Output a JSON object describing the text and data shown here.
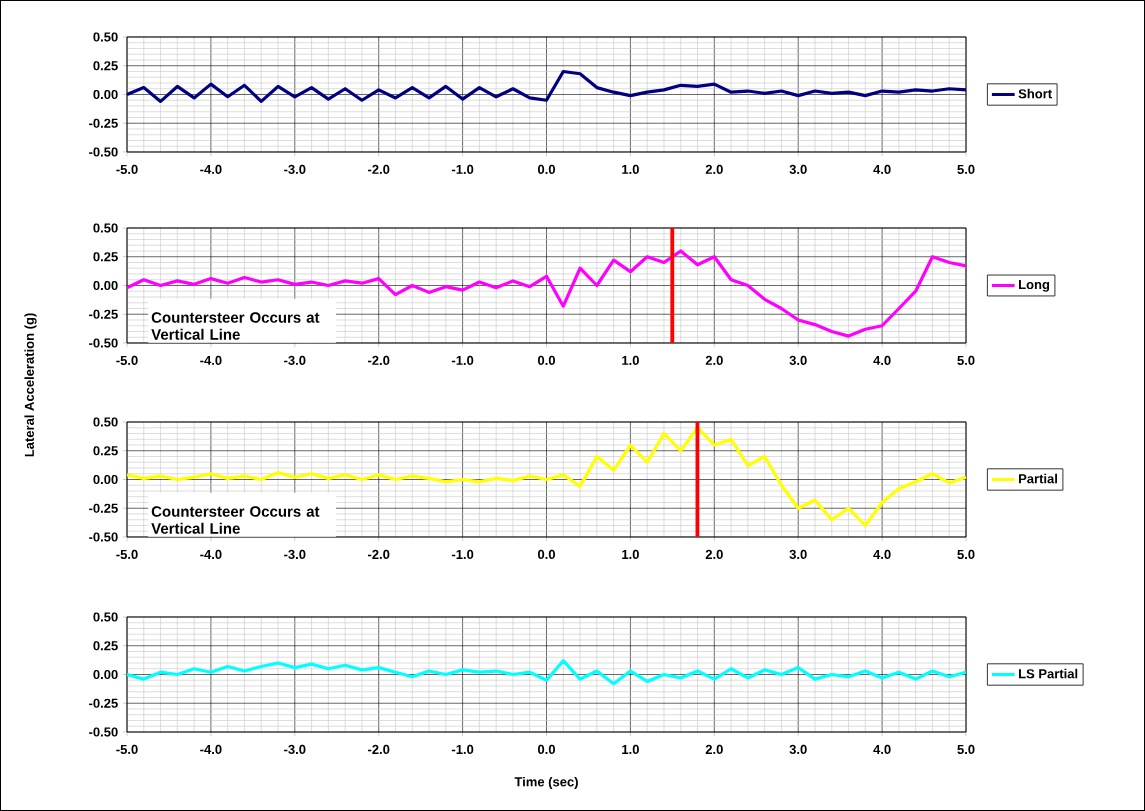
{
  "chart_data": [
    {
      "type": "line",
      "x": [
        -5.0,
        -4.8,
        -4.6,
        -4.4,
        -4.2,
        -4.0,
        -3.8,
        -3.6,
        -3.4,
        -3.2,
        -3.0,
        -2.8,
        -2.6,
        -2.4,
        -2.2,
        -2.0,
        -1.8,
        -1.6,
        -1.4,
        -1.2,
        -1.0,
        -0.8,
        -0.6,
        -0.4,
        -0.2,
        0.0,
        0.2,
        0.4,
        0.6,
        0.8,
        1.0,
        1.2,
        1.4,
        1.6,
        1.8,
        2.0,
        2.2,
        2.4,
        2.6,
        2.8,
        3.0,
        3.2,
        3.4,
        3.6,
        3.8,
        4.0,
        4.2,
        4.4,
        4.6,
        4.8,
        5.0
      ],
      "series": [
        {
          "name": "Short",
          "color": "#000080",
          "values": [
            0.0,
            0.06,
            -0.06,
            0.07,
            -0.03,
            0.09,
            -0.02,
            0.08,
            -0.06,
            0.07,
            -0.02,
            0.06,
            -0.04,
            0.05,
            -0.05,
            0.04,
            -0.03,
            0.06,
            -0.03,
            0.07,
            -0.04,
            0.06,
            -0.02,
            0.05,
            -0.03,
            -0.05,
            0.2,
            0.18,
            0.06,
            0.02,
            -0.01,
            0.02,
            0.04,
            0.08,
            0.07,
            0.09,
            0.02,
            0.03,
            0.01,
            0.03,
            -0.01,
            0.03,
            0.01,
            0.02,
            -0.01,
            0.03,
            0.02,
            0.04,
            0.03,
            0.05,
            0.04
          ]
        }
      ],
      "xlim": [
        -5,
        5
      ],
      "ylim": [
        -0.5,
        0.5
      ],
      "xticks": [
        {
          "value": -5,
          "label": "-5.0"
        },
        {
          "value": -4,
          "label": "-4.0"
        },
        {
          "value": -3,
          "label": "-3.0"
        },
        {
          "value": -2,
          "label": "-2.0"
        },
        {
          "value": -1,
          "label": "-1.0"
        },
        {
          "value": 0,
          "label": "0.0"
        },
        {
          "value": 1,
          "label": "1.0"
        },
        {
          "value": 2,
          "label": "2.0"
        },
        {
          "value": 3,
          "label": "3.0"
        },
        {
          "value": 4,
          "label": "4.0"
        },
        {
          "value": 5,
          "label": "5.0"
        }
      ],
      "yticks": [
        {
          "value": -0.5,
          "label": "-0.50"
        },
        {
          "value": -0.25,
          "label": "-0.25"
        },
        {
          "value": 0,
          "label": "0.00"
        },
        {
          "value": 0.25,
          "label": "0.25"
        },
        {
          "value": 0.5,
          "label": "0.50"
        }
      ],
      "grid": true,
      "legend": "right"
    },
    {
      "type": "line",
      "ylabel": "Lateral Acceleration (g)",
      "x": [
        -5.0,
        -4.8,
        -4.6,
        -4.4,
        -4.2,
        -4.0,
        -3.8,
        -3.6,
        -3.4,
        -3.2,
        -3.0,
        -2.8,
        -2.6,
        -2.4,
        -2.2,
        -2.0,
        -1.8,
        -1.6,
        -1.4,
        -1.2,
        -1.0,
        -0.8,
        -0.6,
        -0.4,
        -0.2,
        0.0,
        0.2,
        0.4,
        0.6,
        0.8,
        1.0,
        1.2,
        1.4,
        1.6,
        1.8,
        2.0,
        2.2,
        2.4,
        2.6,
        2.8,
        3.0,
        3.2,
        3.4,
        3.6,
        3.8,
        4.0,
        4.2,
        4.4,
        4.6,
        4.8,
        5.0
      ],
      "series": [
        {
          "name": "Long",
          "color": "#ff00ff",
          "values": [
            -0.02,
            0.05,
            0.0,
            0.04,
            0.01,
            0.06,
            0.02,
            0.07,
            0.03,
            0.05,
            0.01,
            0.03,
            0.0,
            0.04,
            0.02,
            0.06,
            -0.08,
            0.0,
            -0.06,
            -0.01,
            -0.04,
            0.03,
            -0.02,
            0.04,
            -0.01,
            0.08,
            -0.18,
            0.15,
            0.0,
            0.22,
            0.12,
            0.25,
            0.2,
            0.3,
            0.18,
            0.25,
            0.05,
            0.0,
            -0.12,
            -0.2,
            -0.3,
            -0.34,
            -0.4,
            -0.44,
            -0.38,
            -0.35,
            -0.2,
            -0.05,
            0.25,
            0.2,
            0.17
          ]
        }
      ],
      "xlim": [
        -5,
        5
      ],
      "ylim": [
        -0.5,
        0.5
      ],
      "xticks": [
        {
          "value": -5,
          "label": "-5.0"
        },
        {
          "value": -4,
          "label": "-4.0"
        },
        {
          "value": -3,
          "label": "-3.0"
        },
        {
          "value": -2,
          "label": "-2.0"
        },
        {
          "value": -1,
          "label": "-1.0"
        },
        {
          "value": 0,
          "label": "0.0"
        },
        {
          "value": 1,
          "label": "1.0"
        },
        {
          "value": 2,
          "label": "2.0"
        },
        {
          "value": 3,
          "label": "3.0"
        },
        {
          "value": 4,
          "label": "4.0"
        },
        {
          "value": 5,
          "label": "5.0"
        }
      ],
      "yticks": [
        {
          "value": -0.5,
          "label": "-0.50"
        },
        {
          "value": -0.25,
          "label": "-0.25"
        },
        {
          "value": 0,
          "label": "0.00"
        },
        {
          "value": 0.25,
          "label": "0.25"
        },
        {
          "value": 0.5,
          "label": "0.50"
        }
      ],
      "ref_lines": [
        {
          "axis": "x",
          "value": 1.5,
          "color": "#ff0000"
        }
      ],
      "annotations": [
        "Countersteer Occurs at Vertical Line"
      ],
      "grid": true,
      "legend": "right"
    },
    {
      "type": "line",
      "x": [
        -5.0,
        -4.8,
        -4.6,
        -4.4,
        -4.2,
        -4.0,
        -3.8,
        -3.6,
        -3.4,
        -3.2,
        -3.0,
        -2.8,
        -2.6,
        -2.4,
        -2.2,
        -2.0,
        -1.8,
        -1.6,
        -1.4,
        -1.2,
        -1.0,
        -0.8,
        -0.6,
        -0.4,
        -0.2,
        0.0,
        0.2,
        0.4,
        0.6,
        0.8,
        1.0,
        1.2,
        1.4,
        1.6,
        1.8,
        2.0,
        2.2,
        2.4,
        2.6,
        2.8,
        3.0,
        3.2,
        3.4,
        3.6,
        3.8,
        4.0,
        4.2,
        4.4,
        4.6,
        4.8,
        5.0
      ],
      "series": [
        {
          "name": "Partial",
          "color": "#ffff00",
          "values": [
            0.04,
            0.01,
            0.03,
            0.0,
            0.02,
            0.05,
            0.01,
            0.03,
            0.0,
            0.06,
            0.02,
            0.05,
            0.01,
            0.04,
            0.0,
            0.04,
            0.0,
            0.03,
            0.01,
            -0.02,
            0.0,
            -0.02,
            0.01,
            -0.01,
            0.03,
            0.0,
            0.04,
            -0.06,
            0.2,
            0.08,
            0.3,
            0.15,
            0.4,
            0.25,
            0.45,
            0.3,
            0.35,
            0.12,
            0.2,
            -0.05,
            -0.25,
            -0.18,
            -0.35,
            -0.25,
            -0.4,
            -0.2,
            -0.08,
            -0.02,
            0.05,
            -0.03,
            0.02
          ]
        }
      ],
      "xlim": [
        -5,
        5
      ],
      "ylim": [
        -0.5,
        0.5
      ],
      "xticks": [
        {
          "value": -5,
          "label": "-5.0"
        },
        {
          "value": -4,
          "label": "-4.0"
        },
        {
          "value": -3,
          "label": "-3.0"
        },
        {
          "value": -2,
          "label": "-2.0"
        },
        {
          "value": -1,
          "label": "-1.0"
        },
        {
          "value": 0,
          "label": "0.0"
        },
        {
          "value": 1,
          "label": "1.0"
        },
        {
          "value": 2,
          "label": "2.0"
        },
        {
          "value": 3,
          "label": "3.0"
        },
        {
          "value": 4,
          "label": "4.0"
        },
        {
          "value": 5,
          "label": "5.0"
        }
      ],
      "yticks": [
        {
          "value": -0.5,
          "label": "-0.50"
        },
        {
          "value": -0.25,
          "label": "-0.25"
        },
        {
          "value": 0,
          "label": "0.00"
        },
        {
          "value": 0.25,
          "label": "0.25"
        },
        {
          "value": 0.5,
          "label": "0.50"
        }
      ],
      "ref_lines": [
        {
          "axis": "x",
          "value": 1.8,
          "color": "#ff0000"
        }
      ],
      "annotations": [
        "Countersteer Occurs at Vertical Line"
      ],
      "grid": true,
      "legend": "right"
    },
    {
      "type": "line",
      "xlabel": "Time (sec)",
      "x": [
        -5.0,
        -4.8,
        -4.6,
        -4.4,
        -4.2,
        -4.0,
        -3.8,
        -3.6,
        -3.4,
        -3.2,
        -3.0,
        -2.8,
        -2.6,
        -2.4,
        -2.2,
        -2.0,
        -1.8,
        -1.6,
        -1.4,
        -1.2,
        -1.0,
        -0.8,
        -0.6,
        -0.4,
        -0.2,
        0.0,
        0.2,
        0.4,
        0.6,
        0.8,
        1.0,
        1.2,
        1.4,
        1.6,
        1.8,
        2.0,
        2.2,
        2.4,
        2.6,
        2.8,
        3.0,
        3.2,
        3.4,
        3.6,
        3.8,
        4.0,
        4.2,
        4.4,
        4.6,
        4.8,
        5.0
      ],
      "series": [
        {
          "name": "LS Partial",
          "color": "#00ffff",
          "values": [
            0.0,
            -0.04,
            0.02,
            0.0,
            0.05,
            0.02,
            0.07,
            0.03,
            0.07,
            0.1,
            0.06,
            0.09,
            0.05,
            0.08,
            0.04,
            0.06,
            0.02,
            -0.02,
            0.03,
            0.0,
            0.04,
            0.02,
            0.03,
            0.0,
            0.02,
            -0.05,
            0.12,
            -0.04,
            0.03,
            -0.08,
            0.03,
            -0.06,
            0.0,
            -0.03,
            0.03,
            -0.04,
            0.05,
            -0.03,
            0.04,
            0.0,
            0.06,
            -0.04,
            0.0,
            -0.02,
            0.03,
            -0.03,
            0.02,
            -0.04,
            0.03,
            -0.02,
            0.02
          ]
        }
      ],
      "xlim": [
        -5,
        5
      ],
      "ylim": [
        -0.5,
        0.5
      ],
      "xticks": [
        {
          "value": -5,
          "label": "-5.0"
        },
        {
          "value": -4,
          "label": "-4.0"
        },
        {
          "value": -3,
          "label": "-3.0"
        },
        {
          "value": -2,
          "label": "-2.0"
        },
        {
          "value": -1,
          "label": "-1.0"
        },
        {
          "value": 0,
          "label": "0.0"
        },
        {
          "value": 1,
          "label": "1.0"
        },
        {
          "value": 2,
          "label": "2.0"
        },
        {
          "value": 3,
          "label": "3.0"
        },
        {
          "value": 4,
          "label": "4.0"
        },
        {
          "value": 5,
          "label": "5.0"
        }
      ],
      "yticks": [
        {
          "value": -0.5,
          "label": "-0.50"
        },
        {
          "value": -0.25,
          "label": "-0.25"
        },
        {
          "value": 0,
          "label": "0.00"
        },
        {
          "value": 0.25,
          "label": "0.25"
        },
        {
          "value": 0.5,
          "label": "0.50"
        }
      ],
      "grid": true,
      "legend": "right"
    }
  ]
}
